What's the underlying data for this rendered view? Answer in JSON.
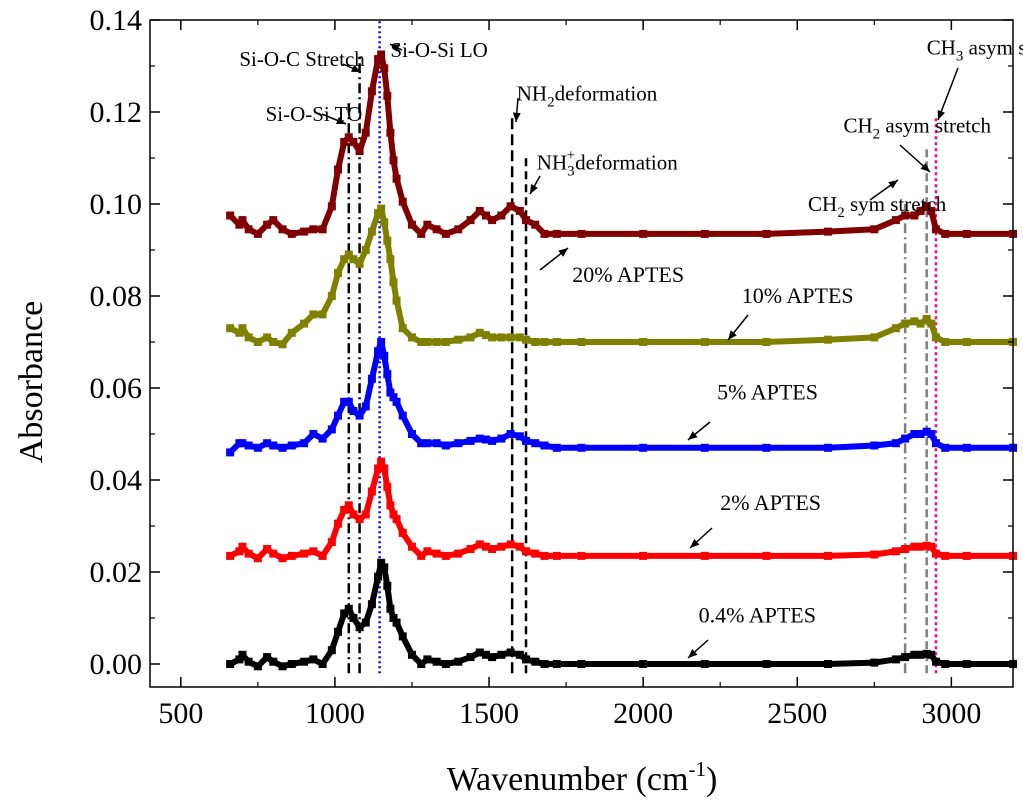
{
  "chart_data": {
    "type": "line",
    "title": "",
    "xlabel": "Wavenumber (cm",
    "xlabel_sup": "-1",
    "xlabel_close": ")",
    "ylabel": "Absorbance",
    "xlim": [
      400,
      3200
    ],
    "ylim": [
      -0.005,
      0.14
    ],
    "x_ticks": [
      "500",
      "1000",
      "1500",
      "2000",
      "2500",
      "3000"
    ],
    "x_tick_values": [
      500,
      1000,
      1500,
      2000,
      2500,
      3000
    ],
    "y_ticks": [
      "0.00",
      "0.02",
      "0.04",
      "0.06",
      "0.08",
      "0.10",
      "0.12",
      "0.14"
    ],
    "y_tick_values": [
      0,
      0.02,
      0.04,
      0.06,
      0.08,
      0.1,
      0.12,
      0.14
    ],
    "grid": false,
    "legend": "none",
    "series": [
      {
        "name": "0.4% APTES",
        "color": "#000000",
        "offset": 0.0,
        "x": [
          660,
          690,
          700,
          720,
          750,
          780,
          800,
          830,
          860,
          900,
          930,
          960,
          990,
          1010,
          1030,
          1045,
          1060,
          1080,
          1100,
          1120,
          1140,
          1150,
          1160,
          1170,
          1180,
          1190,
          1200,
          1220,
          1250,
          1280,
          1300,
          1330,
          1360,
          1400,
          1440,
          1470,
          1490,
          1510,
          1540,
          1570,
          1600,
          1620,
          1650,
          1680,
          1720,
          1800,
          2000,
          2200,
          2400,
          2600,
          2750,
          2820,
          2850,
          2880,
          2900,
          2920,
          2935,
          2950,
          2980,
          3050,
          3200
        ],
        "y": [
          0.0,
          0.001,
          0.002,
          0.0005,
          -0.0005,
          0.0015,
          0.0005,
          -0.0005,
          0.0,
          0.0005,
          0.001,
          0.0,
          0.003,
          0.007,
          0.011,
          0.012,
          0.01,
          0.008,
          0.009,
          0.013,
          0.019,
          0.022,
          0.021,
          0.017,
          0.012,
          0.01,
          0.009,
          0.006,
          0.002,
          0.0,
          0.001,
          0.0005,
          0.0,
          0.0005,
          0.0015,
          0.0025,
          0.002,
          0.0015,
          0.002,
          0.0025,
          0.002,
          0.001,
          0.0005,
          0.0,
          0.0,
          0.0,
          0.0,
          0.0,
          0.0,
          0.0,
          0.0003,
          0.001,
          0.0015,
          0.002,
          0.002,
          0.0022,
          0.002,
          0.0005,
          0.0,
          0.0,
          0.0
        ]
      },
      {
        "name": "2% APTES",
        "color": "#ff0000",
        "offset": 0.0235,
        "x": [
          660,
          690,
          700,
          720,
          750,
          780,
          800,
          830,
          860,
          900,
          930,
          960,
          990,
          1010,
          1030,
          1045,
          1060,
          1080,
          1100,
          1120,
          1140,
          1150,
          1160,
          1170,
          1180,
          1190,
          1200,
          1220,
          1250,
          1280,
          1300,
          1330,
          1360,
          1400,
          1440,
          1470,
          1490,
          1510,
          1540,
          1570,
          1600,
          1620,
          1650,
          1680,
          1720,
          1800,
          2000,
          2200,
          2400,
          2600,
          2750,
          2820,
          2850,
          2880,
          2900,
          2920,
          2935,
          2950,
          2980,
          3050,
          3200
        ],
        "y": [
          0.0,
          0.001,
          0.002,
          0.0005,
          -0.0005,
          0.0015,
          0.0005,
          -0.0005,
          0.0,
          0.0005,
          0.001,
          0.0,
          0.003,
          0.007,
          0.01,
          0.011,
          0.009,
          0.008,
          0.009,
          0.014,
          0.019,
          0.0205,
          0.019,
          0.015,
          0.011,
          0.009,
          0.008,
          0.005,
          0.002,
          0.0,
          0.001,
          0.0005,
          0.0,
          0.0005,
          0.0015,
          0.0025,
          0.002,
          0.0015,
          0.002,
          0.0025,
          0.002,
          0.001,
          0.0005,
          0.0,
          0.0,
          0.0,
          0.0,
          0.0,
          0.0,
          0.0,
          0.0003,
          0.001,
          0.0015,
          0.002,
          0.002,
          0.0022,
          0.002,
          0.0005,
          0.0,
          0.0,
          0.0
        ]
      },
      {
        "name": "5% APTES",
        "color": "#0000ff",
        "offset": 0.047,
        "x": [
          660,
          690,
          700,
          720,
          750,
          780,
          800,
          830,
          860,
          900,
          930,
          960,
          990,
          1010,
          1030,
          1045,
          1060,
          1080,
          1100,
          1120,
          1140,
          1150,
          1160,
          1170,
          1180,
          1190,
          1200,
          1220,
          1250,
          1280,
          1300,
          1330,
          1360,
          1400,
          1440,
          1470,
          1490,
          1510,
          1540,
          1570,
          1600,
          1620,
          1650,
          1680,
          1720,
          1800,
          2000,
          2200,
          2400,
          2600,
          2750,
          2820,
          2850,
          2880,
          2900,
          2920,
          2935,
          2950,
          2980,
          3050,
          3200
        ],
        "y": [
          -0.001,
          0.001,
          0.001,
          0.0005,
          0.0,
          0.001,
          0.0005,
          0.0,
          0.0005,
          0.001,
          0.003,
          0.002,
          0.004,
          0.007,
          0.01,
          0.01,
          0.008,
          0.007,
          0.009,
          0.015,
          0.021,
          0.023,
          0.02,
          0.016,
          0.012,
          0.011,
          0.01,
          0.007,
          0.003,
          0.001,
          0.001,
          0.001,
          0.0005,
          0.001,
          0.0015,
          0.002,
          0.0018,
          0.0015,
          0.002,
          0.003,
          0.0025,
          0.0015,
          0.001,
          0.0005,
          0.0,
          0.0,
          0.0,
          0.0,
          0.0,
          0.0,
          0.0005,
          0.001,
          0.002,
          0.003,
          0.003,
          0.0035,
          0.003,
          0.001,
          0.0,
          0.0,
          0.0
        ]
      },
      {
        "name": "10% APTES",
        "color": "#808000",
        "offset": 0.07,
        "x": [
          660,
          690,
          700,
          720,
          750,
          780,
          800,
          830,
          860,
          900,
          930,
          960,
          990,
          1010,
          1030,
          1045,
          1060,
          1080,
          1100,
          1120,
          1140,
          1150,
          1160,
          1170,
          1180,
          1190,
          1200,
          1220,
          1250,
          1280,
          1300,
          1330,
          1360,
          1400,
          1440,
          1470,
          1490,
          1510,
          1540,
          1570,
          1600,
          1620,
          1650,
          1680,
          1720,
          1800,
          2000,
          2200,
          2400,
          2600,
          2750,
          2820,
          2850,
          2880,
          2900,
          2920,
          2935,
          2950,
          2980,
          3050,
          3200
        ],
        "y": [
          0.003,
          0.002,
          0.003,
          0.001,
          0.0,
          0.001,
          0.0,
          -0.0005,
          0.002,
          0.004,
          0.006,
          0.006,
          0.01,
          0.015,
          0.018,
          0.019,
          0.018,
          0.017,
          0.02,
          0.024,
          0.028,
          0.029,
          0.026,
          0.022,
          0.018,
          0.013,
          0.009,
          0.003,
          0.001,
          0.0,
          0.0,
          0.0,
          0.0,
          0.0005,
          0.001,
          0.002,
          0.0015,
          0.001,
          0.001,
          0.001,
          0.001,
          0.0005,
          0.0,
          0.0,
          0.0,
          0.0,
          0.0,
          0.0,
          0.0,
          0.0005,
          0.001,
          0.003,
          0.004,
          0.0045,
          0.004,
          0.005,
          0.004,
          0.001,
          0.0,
          0.0,
          0.0
        ]
      },
      {
        "name": "20% APTES",
        "color": "#800000",
        "offset": 0.0935,
        "x": [
          660,
          690,
          700,
          720,
          750,
          780,
          800,
          830,
          860,
          900,
          930,
          960,
          990,
          1010,
          1030,
          1045,
          1060,
          1080,
          1100,
          1120,
          1140,
          1150,
          1160,
          1170,
          1180,
          1190,
          1200,
          1220,
          1250,
          1280,
          1300,
          1330,
          1360,
          1400,
          1440,
          1470,
          1490,
          1510,
          1540,
          1570,
          1600,
          1620,
          1650,
          1680,
          1720,
          1800,
          2000,
          2200,
          2400,
          2600,
          2750,
          2820,
          2850,
          2880,
          2900,
          2920,
          2935,
          2950,
          2980,
          3050,
          3200
        ],
        "y": [
          0.004,
          0.002,
          0.003,
          0.001,
          0.0,
          0.002,
          0.003,
          0.001,
          0.0,
          0.0005,
          0.001,
          0.001,
          0.006,
          0.014,
          0.02,
          0.021,
          0.02,
          0.018,
          0.022,
          0.031,
          0.038,
          0.039,
          0.036,
          0.03,
          0.022,
          0.016,
          0.012,
          0.007,
          0.002,
          0.0,
          0.002,
          0.001,
          0.0,
          0.001,
          0.003,
          0.005,
          0.004,
          0.003,
          0.004,
          0.006,
          0.005,
          0.003,
          0.002,
          0.0,
          0.0,
          0.0,
          0.0,
          0.0,
          0.0,
          0.0005,
          0.001,
          0.003,
          0.004,
          0.004,
          0.005,
          0.006,
          0.005,
          0.001,
          0.0,
          0.0,
          0.0
        ]
      }
    ],
    "vertical_lines": [
      {
        "x": 1045,
        "color": "#000000",
        "dash": "10,4,2,4",
        "ytop": 0.122
      },
      {
        "x": 1080,
        "color": "#000000",
        "dash": "10,4,2,4",
        "ytop": 0.132
      },
      {
        "x": 1145,
        "color": "#0000ff",
        "dash": "2,3",
        "ytop": 0.14
      },
      {
        "x": 1575,
        "color": "#000000",
        "dash": "11,5",
        "ytop": 0.119
      },
      {
        "x": 1620,
        "color": "#000000",
        "dash": "8,5",
        "ytop": 0.111
      },
      {
        "x": 2850,
        "color": "#808080",
        "dash": "10,4,2,4",
        "ytop": 0.1
      },
      {
        "x": 2920,
        "color": "#808080",
        "dash": "8,4",
        "ytop": 0.112
      },
      {
        "x": 2950,
        "color": "#ff007f",
        "dash": "3,3",
        "ytop": 0.119
      }
    ],
    "annotations": [
      {
        "text": "Si-O-Si TO",
        "x": 775,
        "y": 0.118
      },
      {
        "text": "Si-O-C Stretch",
        "x": 690,
        "y": 0.13
      },
      {
        "text": "Si-O-Si LO",
        "x": 1180,
        "y": 0.132
      },
      {
        "text": "NH",
        "sub": "2",
        "after": "deformation",
        "x": 1590,
        "y": 0.1225
      },
      {
        "text": "NH",
        "sub": "3",
        "sup": "+",
        "after": "deformation",
        "x": 1655,
        "y": 0.1075
      },
      {
        "text": "CH",
        "sub": "2",
        "after": " sym stretch",
        "x": 2535,
        "y": 0.0985
      },
      {
        "text": "CH",
        "sub": "2",
        "after": " asym stretch",
        "x": 2650,
        "y": 0.1155
      },
      {
        "text": "CH",
        "sub": "3",
        "after": " asym stretch",
        "x": 2920,
        "y": 0.1325
      }
    ],
    "series_labels": [
      {
        "text": "20% APTES",
        "x": 1770,
        "y": 0.083
      },
      {
        "text": "10% APTES",
        "x": 2320,
        "y": 0.0785
      },
      {
        "text": "5% APTES",
        "x": 2240,
        "y": 0.0575
      },
      {
        "text": "2% APTES",
        "x": 2250,
        "y": 0.0335
      },
      {
        "text": "0.4% APTES",
        "x": 2180,
        "y": 0.009
      }
    ]
  }
}
